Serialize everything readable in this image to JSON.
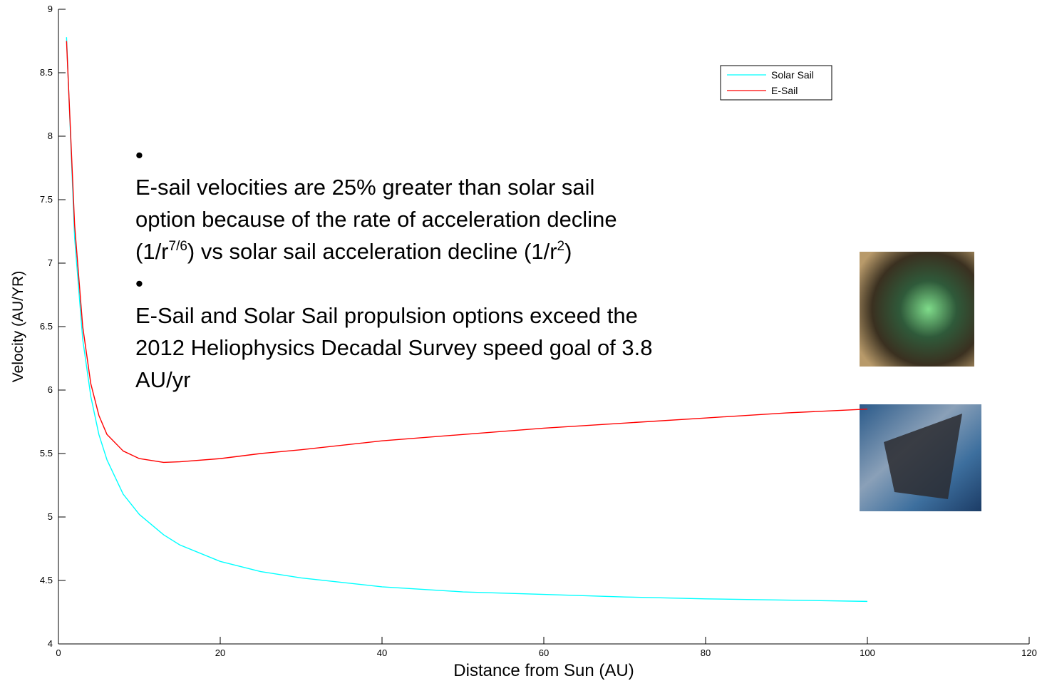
{
  "chart_data": {
    "type": "line",
    "xlabel": "Distance from Sun (AU)",
    "ylabel": "Velocity (AU/YR)",
    "x": [
      1,
      2,
      3,
      4,
      5,
      6,
      8,
      10,
      13,
      15,
      20,
      25,
      30,
      40,
      50,
      60,
      70,
      80,
      90,
      100
    ],
    "series": [
      {
        "name": "Solar Sail",
        "color": "#00ffff",
        "values": [
          8.78,
          7.2,
          6.4,
          5.95,
          5.65,
          5.45,
          5.18,
          5.02,
          4.86,
          4.78,
          4.65,
          4.57,
          4.52,
          4.45,
          4.41,
          4.39,
          4.37,
          4.355,
          4.345,
          4.335
        ]
      },
      {
        "name": "E-Sail",
        "color": "#ff0000",
        "values": [
          8.75,
          7.3,
          6.5,
          6.05,
          5.8,
          5.65,
          5.52,
          5.46,
          5.43,
          5.435,
          5.46,
          5.5,
          5.53,
          5.6,
          5.65,
          5.7,
          5.74,
          5.78,
          5.82,
          5.85
        ]
      }
    ],
    "xlim": [
      0,
      120
    ],
    "xticks": [
      0,
      20,
      40,
      60,
      80,
      100,
      120
    ],
    "ylim": [
      4,
      9
    ],
    "yticks": [
      4,
      4.5,
      5,
      5.5,
      6,
      6.5,
      7,
      7.5,
      8,
      8.5,
      9
    ],
    "grid": false,
    "legend": "upper right",
    "bullets": [
      [
        [
          "E-sail velocities are 25% greater than solar sail"
        ],
        [
          "option because of the rate of acceleration decline"
        ],
        [
          "(1/r",
          {
            "sup": "7/6"
          },
          ") vs solar sail acceleration decline (1/r",
          {
            "sup": "2"
          },
          ")"
        ]
      ],
      [
        [
          "E-Sail and Solar Sail propulsion options exceed the"
        ],
        [
          "2012 Heliophysics Decadal Survey speed goal of 3.8"
        ],
        [
          "AU/yr"
        ]
      ]
    ]
  }
}
